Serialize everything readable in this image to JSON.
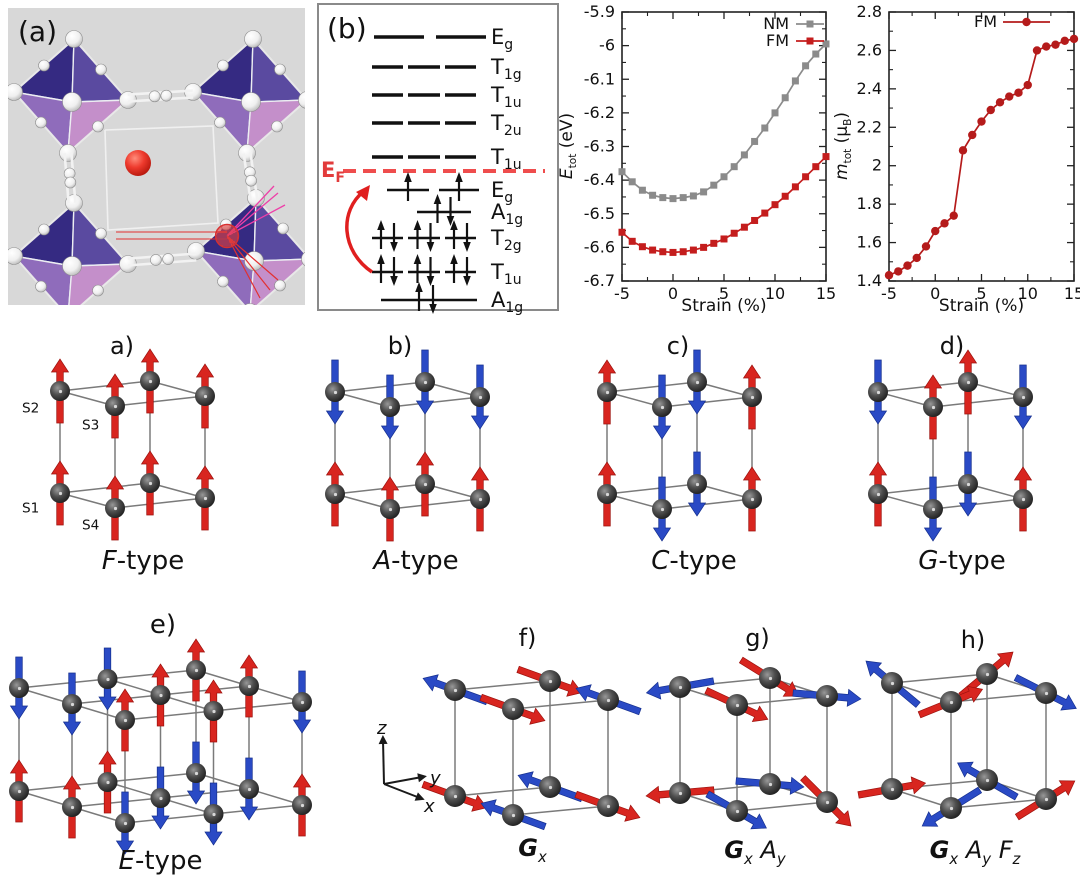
{
  "colors": {
    "spin_up_red": "#d8251f",
    "spin_down_blue": "#2a4ac5",
    "atom_gray": "#3d3d3d",
    "cube_edge": "#7a7a7a",
    "nm_gray": "#8b8b8b",
    "fm_red": "#c41d1d",
    "fm_dark_red": "#b51b1b",
    "fermi_red": "#ef4d4d",
    "level_black": "#111111",
    "panel_a_bg": "#d8d8d8",
    "oct_face_dark": "#352a82",
    "oct_face_mid": "#5a4aa0",
    "oct_face_light": "#8f6cbb",
    "oct_face_pink": "#c48fca",
    "red_atom": "#e02a1e",
    "pink_line": "#ee3fa8",
    "red_line": "#e23030"
  },
  "panels": {
    "a": {
      "label": "(a)"
    },
    "b": {
      "label": "(b)",
      "fermi_label": {
        "t": "E",
        "sub": "F"
      },
      "levels_above": [
        {
          "t": "E",
          "sub": "g",
          "n": 2
        },
        {
          "t": "T",
          "sub": "1g",
          "n": 3
        },
        {
          "t": "T",
          "sub": "1u",
          "n": 3
        },
        {
          "t": "T",
          "sub": "2u",
          "n": 3
        },
        {
          "t": "T",
          "sub": "1u",
          "n": 3
        }
      ],
      "levels_below": [
        {
          "t": "E",
          "sub": "g",
          "n": 2,
          "occ": "single_up"
        },
        {
          "t": "A",
          "sub": "1g",
          "n": 1,
          "occ": "pair"
        },
        {
          "t": "T",
          "sub": "2g",
          "n": 3,
          "occ": "pair"
        },
        {
          "t": "T",
          "sub": "1u",
          "n": 3,
          "occ": "pair"
        },
        {
          "t": "A",
          "sub": "1g",
          "n": 1,
          "occ": "pair_wide"
        }
      ]
    }
  },
  "chart_data": [
    {
      "type": "line",
      "title": "",
      "xlabel": "Strain (%)",
      "ylabel_parts": [
        {
          "t": "E",
          "i": 1
        },
        {
          "t": "tot",
          "sub": 1
        },
        {
          "t": " (eV)"
        }
      ],
      "xlim": [
        -5,
        15
      ],
      "ylim": [
        -6.7,
        -5.9
      ],
      "grid": false,
      "legend_position": "top-right",
      "xticks": {
        "values": [
          -5,
          0,
          5,
          10,
          15
        ],
        "labels": [
          "-5",
          "0",
          "5",
          "10",
          "15"
        ],
        "minor": [
          -2.5,
          2.5,
          7.5,
          12.5
        ]
      },
      "yticks": {
        "values": [
          -5.9,
          -6,
          -6.1,
          -6.2,
          -6.3,
          -6.4,
          -6.5,
          -6.6,
          -6.7
        ],
        "labels": [
          "-5.9",
          "-6",
          "-6.1",
          "-6.2",
          "-6.3",
          "-6.4",
          "-6.5",
          "-6.6",
          "-6.7"
        ],
        "minor": [
          -5.95,
          -6.05,
          -6.15,
          -6.25,
          -6.35,
          -6.45,
          -6.55,
          -6.65
        ]
      },
      "x": [
        -5,
        -4,
        -3,
        -2,
        -1,
        0,
        1,
        2,
        3,
        4,
        5,
        6,
        7,
        8,
        9,
        10,
        11,
        12,
        13,
        14,
        15
      ],
      "series": [
        {
          "name": "NM",
          "color": "#8b8b8b",
          "marker": "square",
          "values": [
            -6.375,
            -6.405,
            -6.43,
            -6.445,
            -6.452,
            -6.455,
            -6.452,
            -6.447,
            -6.435,
            -6.415,
            -6.39,
            -6.36,
            -6.325,
            -6.285,
            -6.245,
            -6.2,
            -6.155,
            -6.105,
            -6.06,
            -6.025,
            -5.995
          ]
        },
        {
          "name": "FM",
          "color": "#c41d1d",
          "marker": "square",
          "values": [
            -6.555,
            -6.582,
            -6.598,
            -6.608,
            -6.613,
            -6.615,
            -6.613,
            -6.608,
            -6.6,
            -6.588,
            -6.575,
            -6.558,
            -6.54,
            -6.52,
            -6.498,
            -6.473,
            -6.448,
            -6.42,
            -6.39,
            -6.36,
            -6.33
          ]
        }
      ]
    },
    {
      "type": "line",
      "title": "",
      "xlabel": "Strain (%)",
      "ylabel_parts": [
        {
          "t": "m",
          "i": 1
        },
        {
          "t": "tot",
          "sub": 1
        },
        {
          "t": " (μ"
        },
        {
          "t": "B",
          "sub": 1
        },
        {
          "t": ")"
        }
      ],
      "xlim": [
        -5,
        15
      ],
      "ylim": [
        1.4,
        2.8
      ],
      "grid": false,
      "legend_position": "top-right",
      "xticks": {
        "values": [
          -5,
          0,
          5,
          10,
          15
        ],
        "labels": [
          "-5",
          "0",
          "5",
          "10",
          "15"
        ],
        "minor": [
          -2.5,
          2.5,
          7.5,
          12.5
        ]
      },
      "yticks": {
        "values": [
          1.4,
          1.6,
          1.8,
          2,
          2.2,
          2.4,
          2.6,
          2.8
        ],
        "labels": [
          "1.4",
          "1.6",
          "1.8",
          "2",
          "2.2",
          "2.4",
          "2.6",
          "2.8"
        ],
        "minor": [
          1.5,
          1.7,
          1.9,
          2.1,
          2.3,
          2.5,
          2.7
        ]
      },
      "x": [
        -5,
        -4,
        -3,
        -2,
        -1,
        0,
        1,
        2,
        3,
        4,
        5,
        6,
        7,
        8,
        9,
        10,
        11,
        12,
        13,
        14,
        15
      ],
      "series": [
        {
          "name": "FM",
          "color": "#b51b1b",
          "marker": "circle",
          "values": [
            1.43,
            1.45,
            1.48,
            1.52,
            1.58,
            1.66,
            1.7,
            1.74,
            2.08,
            2.16,
            2.23,
            2.29,
            2.33,
            2.36,
            2.38,
            2.42,
            2.6,
            2.62,
            2.63,
            2.65,
            2.66
          ]
        }
      ]
    }
  ],
  "spin_panels": {
    "a": {
      "label": "a)",
      "caption": [
        {
          "t": "F",
          "i": 1
        },
        {
          "t": "-type"
        }
      ],
      "site_labels": [
        {
          "t": "S",
          "sub": "2"
        },
        {
          "t": "S",
          "sub": "3"
        },
        {
          "t": "S",
          "sub": "1"
        },
        {
          "t": "S",
          "sub": "4"
        }
      ],
      "top": [
        "u",
        "u",
        "u",
        "u"
      ],
      "bottom": [
        "u",
        "u",
        "u",
        "u"
      ]
    },
    "b": {
      "label": "b)",
      "caption": [
        {
          "t": "A",
          "i": 1
        },
        {
          "t": "-type"
        }
      ],
      "top": [
        "d",
        "d",
        "d",
        "d"
      ],
      "bottom": [
        "u",
        "u",
        "u",
        "u"
      ]
    },
    "c": {
      "label": "c)",
      "caption": [
        {
          "t": "C",
          "i": 1
        },
        {
          "t": "-type"
        }
      ],
      "top": [
        "u",
        "d",
        "d",
        "u"
      ],
      "bottom": [
        "u",
        "d",
        "d",
        "u"
      ]
    },
    "d": {
      "label": "d)",
      "caption": [
        {
          "t": "G",
          "i": 1
        },
        {
          "t": "-type"
        }
      ],
      "top": [
        "d",
        "u",
        "u",
        "d"
      ],
      "bottom": [
        "u",
        "d",
        "d",
        "u"
      ]
    },
    "e": {
      "label": "e)",
      "caption": [
        {
          "t": "E",
          "i": 1
        },
        {
          "t": "-type"
        }
      ],
      "top": [
        [
          "d",
          "d",
          "u"
        ],
        [
          "d",
          "u",
          "u"
        ],
        [
          "u",
          "u",
          "d"
        ]
      ],
      "bottom": [
        [
          "u",
          "u",
          "d"
        ],
        [
          "u",
          "d",
          "d"
        ],
        [
          "d",
          "d",
          "u"
        ]
      ]
    },
    "f": {
      "label": "f)",
      "caption": [
        {
          "t": "G",
          "i": 1,
          "b": 1
        },
        {
          "t": "x",
          "sub": 1,
          "i": 1
        }
      ],
      "axes": {
        "x": "x",
        "y": "y",
        "z": "z"
      },
      "top": [
        {
          "c": "b",
          "a": 160
        },
        {
          "c": "r",
          "a": -20
        },
        {
          "c": "r",
          "a": -20
        },
        {
          "c": "b",
          "a": 160
        }
      ],
      "bottom": [
        {
          "c": "r",
          "a": -20
        },
        {
          "c": "b",
          "a": 160
        },
        {
          "c": "b",
          "a": 160
        },
        {
          "c": "r",
          "a": -20
        }
      ]
    },
    "g": {
      "label": "g)",
      "caption": [
        {
          "t": "G",
          "i": 1,
          "b": 1
        },
        {
          "t": "x",
          "sub": 1,
          "i": 1
        },
        {
          "t": " "
        },
        {
          "t": "A",
          "i": 1
        },
        {
          "t": "y",
          "sub": 1,
          "i": 1
        }
      ],
      "top": [
        {
          "c": "b",
          "a": 190
        },
        {
          "c": "r",
          "a": -25
        },
        {
          "c": "r",
          "a": -32
        },
        {
          "c": "b",
          "a": -5
        }
      ],
      "bottom": [
        {
          "c": "r",
          "a": 185
        },
        {
          "c": "b",
          "a": -30
        },
        {
          "c": "b",
          "a": -5
        },
        {
          "c": "r",
          "a": -45
        }
      ]
    },
    "h": {
      "label": "h)",
      "caption": [
        {
          "t": "G",
          "i": 1,
          "b": 1
        },
        {
          "t": "x",
          "sub": 1,
          "i": 1
        },
        {
          "t": " "
        },
        {
          "t": "A",
          "i": 1
        },
        {
          "t": "y",
          "sub": 1,
          "i": 1
        },
        {
          "t": " "
        },
        {
          "t": "F",
          "i": 1
        },
        {
          "t": "z",
          "sub": 1,
          "i": 1
        }
      ],
      "top": [
        {
          "c": "b",
          "a": 140
        },
        {
          "c": "r",
          "a": 22
        },
        {
          "c": "r",
          "a": 40
        },
        {
          "c": "b",
          "a": -27
        }
      ],
      "bottom": [
        {
          "c": "r",
          "a": 10
        },
        {
          "c": "b",
          "a": 212
        },
        {
          "c": "b",
          "a": 150
        },
        {
          "c": "r",
          "a": 32
        }
      ]
    }
  }
}
